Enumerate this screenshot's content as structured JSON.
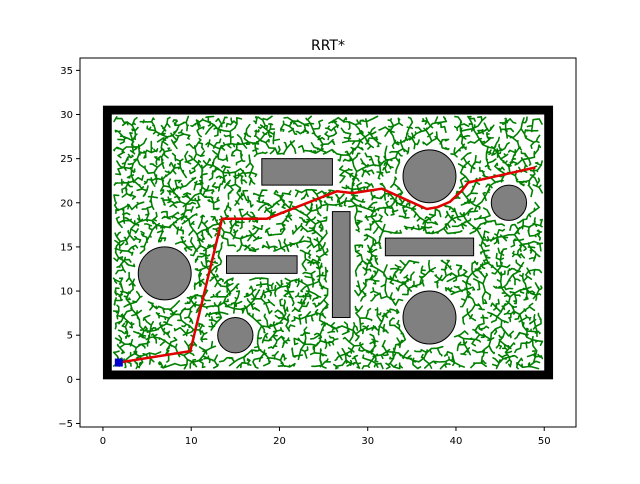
{
  "chart_data": {
    "type": "line",
    "title": "RRT*",
    "xlabel": "",
    "ylabel": "",
    "xlim": [
      -2.6,
      53.6
    ],
    "ylim": [
      -5.4,
      36.4
    ],
    "xticks": [
      0,
      10,
      20,
      30,
      40,
      50
    ],
    "yticks": [
      -5,
      0,
      5,
      10,
      15,
      20,
      25,
      30,
      35
    ],
    "grid": false,
    "boundary": {
      "x0": 0.5,
      "y0": 0.5,
      "x1": 50.5,
      "y1": 30.5
    },
    "obstacles": {
      "circles": [
        {
          "cx": 37,
          "cy": 23,
          "r": 3
        },
        {
          "cx": 46,
          "cy": 20,
          "r": 2
        },
        {
          "cx": 7,
          "cy": 12,
          "r": 3
        },
        {
          "cx": 15,
          "cy": 5,
          "r": 2
        },
        {
          "cx": 37,
          "cy": 7,
          "r": 3
        }
      ],
      "rectangles": [
        {
          "x": 18,
          "y": 22,
          "w": 8,
          "h": 3
        },
        {
          "x": 14,
          "y": 12,
          "w": 8,
          "h": 2
        },
        {
          "x": 26,
          "y": 7,
          "w": 2,
          "h": 12
        },
        {
          "x": 32,
          "y": 14,
          "w": 10,
          "h": 2
        }
      ]
    },
    "start": {
      "x": 1.8,
      "y": 1.9
    },
    "path": {
      "x": [
        1.8,
        9.9,
        13.5,
        18.6,
        26.5,
        28.3,
        31.6,
        36.7,
        37.9,
        39.3,
        40.7,
        41.4,
        49.0
      ],
      "y": [
        1.9,
        3.2,
        18.2,
        18.2,
        21.3,
        21.1,
        21.6,
        19.3,
        19.5,
        20.1,
        21.4,
        22.3,
        24.0
      ]
    },
    "colors": {
      "tree": "#008000",
      "path": "#e00000",
      "obstacle_fill": "#808080",
      "boundary": "#000000",
      "start": "#0000cc"
    }
  }
}
